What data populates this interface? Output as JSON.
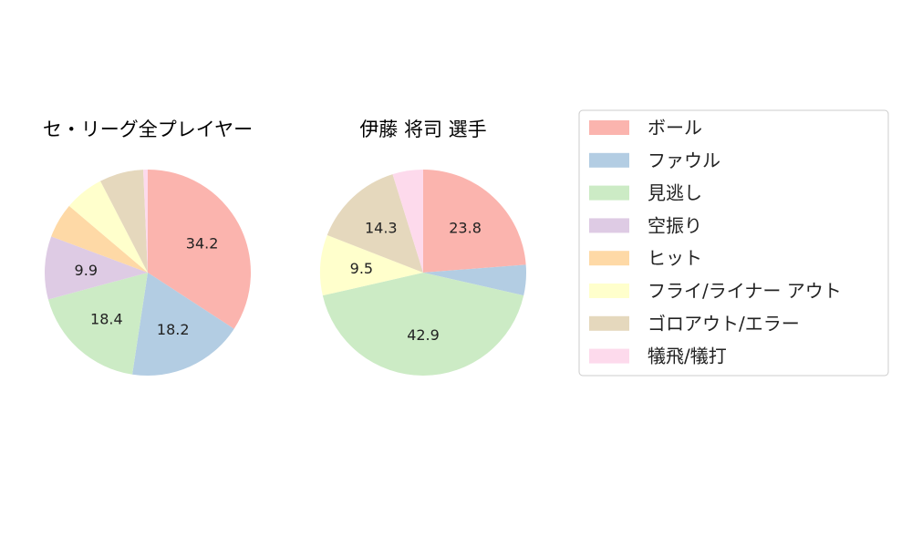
{
  "categories": [
    "ボール",
    "ファウル",
    "見逃し",
    "空振り",
    "ヒット",
    "フライ/ライナー アウト",
    "ゴロアウト/エラー",
    "犠飛/犠打"
  ],
  "colors": [
    "#fbb4ae",
    "#b3cde3",
    "#ccebc5",
    "#decbe4",
    "#fed9a6",
    "#ffffcc",
    "#e5d8bd",
    "#fddaec"
  ],
  "chart_data": [
    {
      "type": "pie",
      "title": "セ・リーグ全プレイヤー",
      "values": [
        34.2,
        18.2,
        18.4,
        9.9,
        5.5,
        6.2,
        6.9,
        0.7
      ],
      "labels": [
        "34.2",
        "18.2",
        "18.4",
        "9.9",
        "",
        "",
        "",
        ""
      ]
    },
    {
      "type": "pie",
      "title": "伊藤 将司  選手",
      "values": [
        23.8,
        4.8,
        42.9,
        0,
        0,
        9.5,
        14.3,
        4.8
      ],
      "labels": [
        "23.8",
        "",
        "42.9",
        "",
        "",
        "9.5",
        "14.3",
        ""
      ]
    }
  ],
  "legend": {
    "items": [
      "ボール",
      "ファウル",
      "見逃し",
      "空振り",
      "ヒット",
      "フライ/ライナー アウト",
      "ゴロアウト/エラー",
      "犠飛/犠打"
    ]
  }
}
